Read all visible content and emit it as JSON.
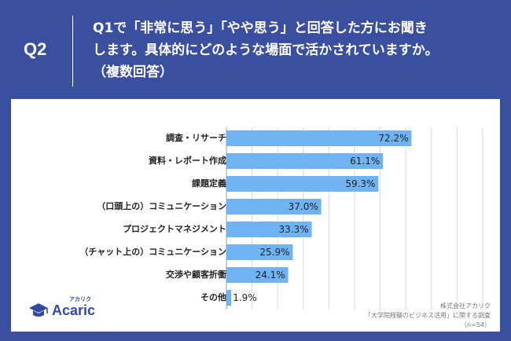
{
  "header": {
    "q_label": "Q2",
    "question": "Q1で「非常に思う」「やや思う」と回答した方にお聞き\nします。具体的にどのような場面で活かされていますか。\n（複数回答）"
  },
  "chart_data": {
    "type": "bar",
    "orientation": "horizontal",
    "categories": [
      "調査・リサーチ",
      "資料・レポート作成",
      "課題定義",
      "（口頭上の）コミュニケーション",
      "プロジェクトマネジメント",
      "（チャット上の）コミュニケーション",
      "交渉や顧客折衝",
      "その他"
    ],
    "values": [
      72.2,
      61.1,
      59.3,
      37.0,
      33.3,
      25.9,
      24.1,
      1.9
    ],
    "value_labels": [
      "72.2%",
      "61.1%",
      "59.3%",
      "37.0%",
      "33.3%",
      "25.9%",
      "24.1%",
      "1.9%"
    ],
    "xlim": [
      0,
      100
    ],
    "grid": true,
    "bar_color": "#6fb3f2"
  },
  "logo": {
    "text": "Acaric",
    "sub": "アカリク",
    "icon": "graduation-cap-icon"
  },
  "source": {
    "line1": "株式会社アカリク",
    "line2": "「大学院経験のビジネス活用」に関する調査",
    "line3": "（n=54）"
  },
  "colors": {
    "background": "#3a4fa0",
    "bar": "#6fb3f2",
    "grid": "#d9d9d9"
  }
}
